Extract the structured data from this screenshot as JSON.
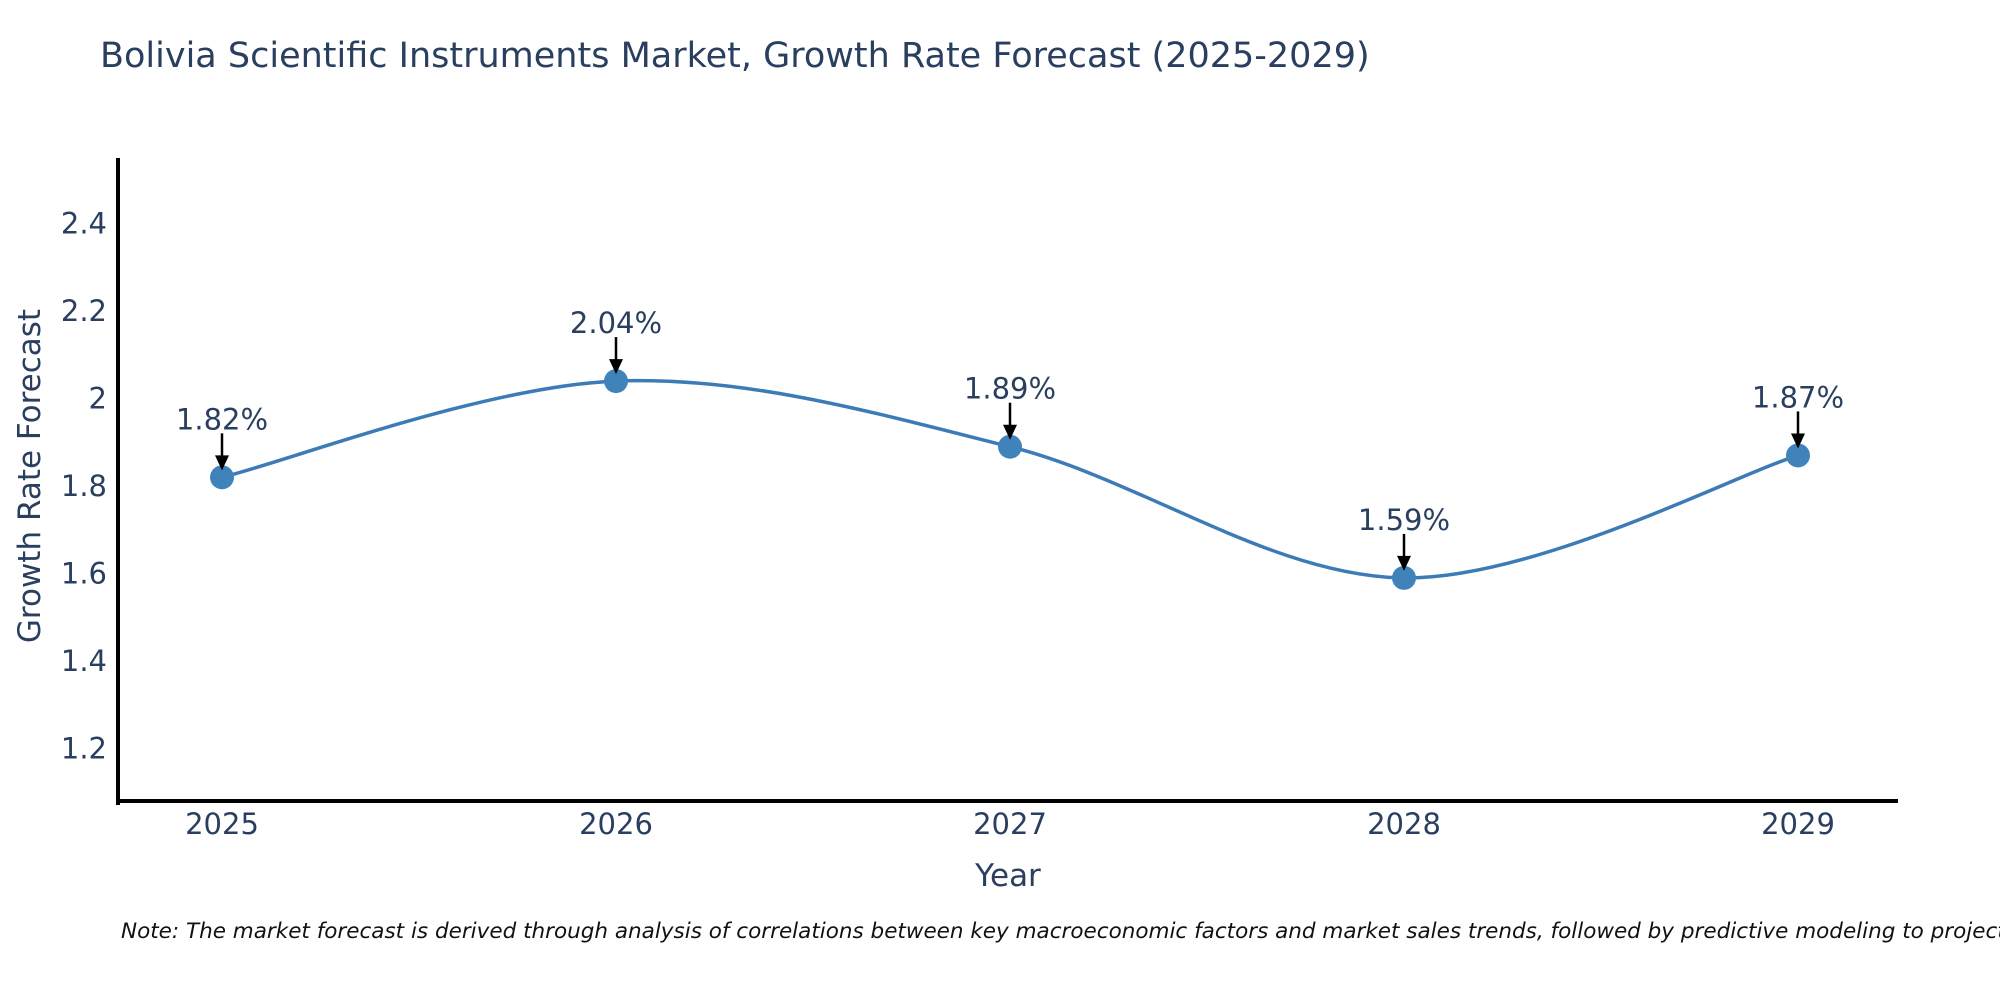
{
  "title": "Bolivia Scientific Instruments Market, Growth Rate Forecast (2025-2029)",
  "note": "Note: The market forecast is derived through analysis of correlations between key macroeconomic factors and market sales trends, followed by predictive modeling to project future sales",
  "chart_data": {
    "type": "line",
    "line_shape": "spline",
    "x": [
      2025,
      2026,
      2027,
      2028,
      2029
    ],
    "values": [
      1.82,
      2.04,
      1.89,
      1.59,
      1.87
    ],
    "point_labels": [
      "1.82%",
      "2.04%",
      "1.89%",
      "1.59%",
      "1.87%"
    ],
    "xlabel": "Year",
    "ylabel": "Growth Rate Forecast",
    "yticks": [
      1.2,
      1.4,
      1.6,
      1.8,
      2,
      2.2,
      2.4
    ],
    "ylim": [
      1.08,
      2.55
    ],
    "grid": false,
    "legend": "none",
    "annotations_have_arrows": true
  },
  "colors": {
    "line": "#3c7bb6",
    "marker": "#4083bb",
    "axis": "#000000",
    "title_text": "#2a3f5f",
    "tick_text": "#2a3f5f",
    "annotation_text": "#2a3f5f",
    "arrow": "#000000",
    "note_text": "#111111"
  }
}
